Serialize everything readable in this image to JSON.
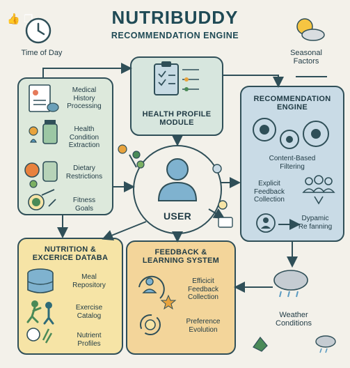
{
  "header": {
    "title": "NUTRIBUDDY",
    "subtitle": "RECOMMENDATION ENGINE"
  },
  "corner_icons": [
    "thumbs-up-icon",
    "copy-icon"
  ],
  "time_of_day": {
    "label": "Time of Day",
    "icon": "clock-icon"
  },
  "seasonal": {
    "label": "Seasonal\nFactors",
    "icon": "sun-cloud-icon"
  },
  "health_profile": {
    "title": "HEALTH PROFILE\nMODULE",
    "items": [
      {
        "label": "Medical\nHistory\nProcessing",
        "icon": "medical-document-icon"
      },
      {
        "label": "Health\nCondition\nExtraction",
        "icon": "medicine-bottle-icon"
      },
      {
        "label": "Dietary\nRestrictions",
        "icon": "fruit-jar-icon"
      },
      {
        "label": "Fitness\nGoals",
        "icon": "target-icon"
      }
    ]
  },
  "user": {
    "label": "USER",
    "icon": "user-icon"
  },
  "recommendation_engine": {
    "title": "RECOMMENDATION\nENGINE",
    "items": [
      {
        "label": "Content-Based\nFiltering",
        "icon": "gears-icon"
      },
      {
        "label": "Explicit\nFeedback\nCollection",
        "icon": "group-icon"
      },
      {
        "label": "Dypamic\nRe fanning",
        "icon": "person-icon"
      }
    ]
  },
  "nutrition_db": {
    "title": "NUTRITION &\nEXCERICE DATABA",
    "items": [
      {
        "label": "Meal\nRepository",
        "icon": "database-icon"
      },
      {
        "label": "Exercise\nCatalog",
        "icon": "exercise-icon"
      },
      {
        "label": "Nutrient\nProfiles",
        "icon": "nutrient-icon"
      }
    ]
  },
  "feedback": {
    "title": "FEEDBACK &\nLEARNING SYSTEM",
    "items": [
      {
        "label": "Efficicit\nFeedback\nCollection",
        "icon": "person-star-icon"
      },
      {
        "label": "Preference\nEvolution",
        "icon": "gear-cycle-icon"
      }
    ]
  },
  "weather": {
    "label": "Weather\nConditions",
    "icon": "storm-cloud-icon"
  },
  "colors": {
    "background": "#f3f1ea",
    "health_profile": "#d7e6de",
    "recommendation": "#c9dbe6",
    "nutrition": "#f6e4a6",
    "feedback": "#f3d59a",
    "line": "#2f4f58"
  }
}
